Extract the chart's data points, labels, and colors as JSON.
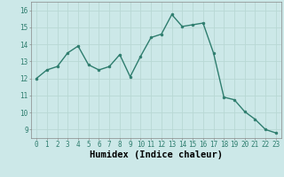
{
  "xlabel": "Humidex (Indice chaleur)",
  "x_values": [
    0,
    1,
    2,
    3,
    4,
    5,
    6,
    7,
    8,
    9,
    10,
    11,
    12,
    13,
    14,
    15,
    16,
    17,
    18,
    19,
    20,
    21,
    22,
    23
  ],
  "y_values": [
    12.0,
    12.5,
    12.7,
    13.5,
    13.9,
    12.8,
    12.5,
    12.7,
    13.4,
    12.1,
    13.3,
    14.4,
    14.6,
    15.75,
    15.05,
    15.15,
    15.25,
    13.5,
    10.9,
    10.75,
    10.05,
    9.6,
    9.0,
    8.8
  ],
  "line_color": "#2e7d6e",
  "marker_color": "#2e7d6e",
  "bg_color": "#cce8e8",
  "grid_color": "#b8d8d4",
  "xlim": [
    -0.5,
    23.5
  ],
  "ylim": [
    8.5,
    16.5
  ],
  "yticks": [
    9,
    10,
    11,
    12,
    13,
    14,
    15,
    16
  ],
  "xticks": [
    0,
    1,
    2,
    3,
    4,
    5,
    6,
    7,
    8,
    9,
    10,
    11,
    12,
    13,
    14,
    15,
    16,
    17,
    18,
    19,
    20,
    21,
    22,
    23
  ],
  "tick_fontsize": 5.5,
  "xlabel_fontsize": 7.5,
  "marker_size": 2.0,
  "line_width": 1.0
}
